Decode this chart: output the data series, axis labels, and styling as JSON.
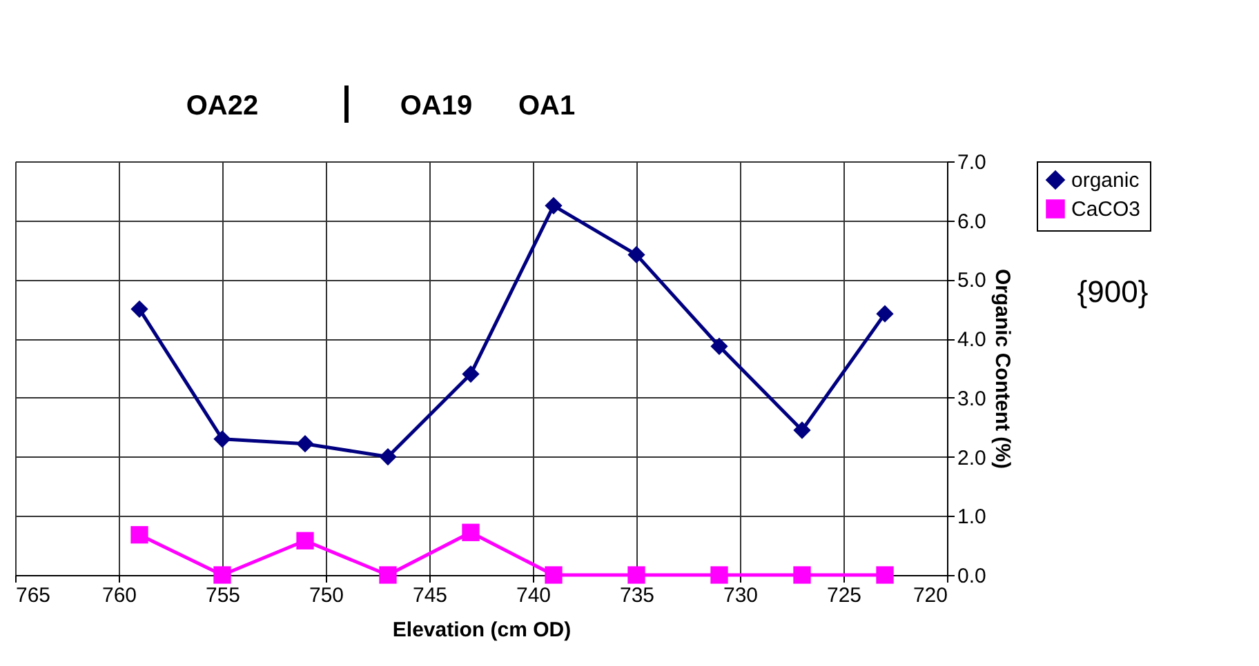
{
  "chart_data": {
    "type": "line",
    "xlabel": "Elevation (cm OD)",
    "ylabel": "Organic Content (%)",
    "x": [
      759,
      755,
      751,
      747,
      743,
      739,
      735,
      731,
      727,
      723
    ],
    "series": [
      {
        "name": "organic",
        "color": "#000080",
        "marker": "diamond",
        "values": [
          4.5,
          2.3,
          2.22,
          2.0,
          3.4,
          6.25,
          5.42,
          3.87,
          2.45,
          4.42
        ]
      },
      {
        "name": "CaCO3",
        "color": "#ff00ff",
        "marker": "square",
        "values": [
          0.68,
          0.0,
          0.58,
          0.0,
          0.72,
          0.0,
          0.0,
          0.0,
          0.0,
          0.0
        ]
      }
    ],
    "xlim": [
      765,
      720
    ],
    "xticks": [
      765,
      760,
      755,
      750,
      745,
      740,
      735,
      730,
      725,
      720
    ],
    "ylim": [
      0,
      7
    ],
    "yticks": [
      {
        "value": 0,
        "label": "0.0"
      },
      {
        "value": 1,
        "label": "1.0"
      },
      {
        "value": 2,
        "label": "2.0"
      },
      {
        "value": 3,
        "label": "3.0"
      },
      {
        "value": 4,
        "label": "4.0"
      },
      {
        "value": 5,
        "label": "5.0"
      },
      {
        "value": 6,
        "label": "6.0"
      },
      {
        "value": 7,
        "label": "7.0"
      }
    ],
    "grid": true,
    "legend": "right",
    "line_style": "solid",
    "annotations": [
      "OA22",
      "OA19",
      "OA1",
      "{900}"
    ]
  }
}
